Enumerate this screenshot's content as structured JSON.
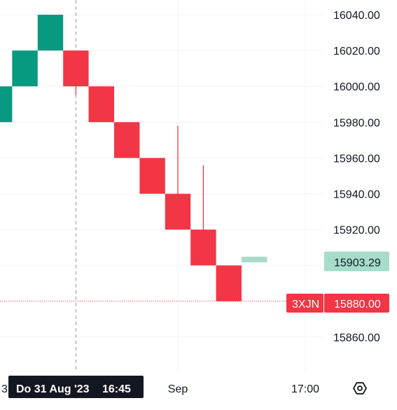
{
  "chart_data": {
    "type": "renko",
    "y_axis": {
      "ticks": [
        "16040.00",
        "16020.00",
        "16000.00",
        "15980.00",
        "15960.00",
        "15940.00",
        "15920.00",
        "15860.00"
      ],
      "range": [
        15848,
        16048
      ],
      "side": "right"
    },
    "x_axis": {
      "ticks": [
        {
          "label": "Sep",
          "index": 7
        },
        {
          "label": "17:00",
          "index": 12
        }
      ],
      "crosshair_label": {
        "date": "Do 31 Aug '23",
        "time": "16:45",
        "index": 3
      },
      "left_cut_label": "3"
    },
    "box_size": 20,
    "bricks": [
      {
        "dir": "up",
        "open": 15980,
        "close": 16000
      },
      {
        "dir": "up",
        "open": 16000,
        "close": 16020
      },
      {
        "dir": "up",
        "open": 16020,
        "close": 16040
      },
      {
        "dir": "down",
        "open": 16020,
        "close": 16000,
        "wick": [
          15995,
          16020
        ]
      },
      {
        "dir": "down",
        "open": 16000,
        "close": 15980
      },
      {
        "dir": "down",
        "open": 15980,
        "close": 15960
      },
      {
        "dir": "down",
        "open": 15960,
        "close": 15940
      },
      {
        "dir": "down",
        "open": 15940,
        "close": 15920,
        "wick": [
          15920,
          15978
        ]
      },
      {
        "dir": "down",
        "open": 15920,
        "close": 15900,
        "wick": [
          15900,
          15956
        ]
      },
      {
        "dir": "down",
        "open": 15900,
        "close": 15880
      }
    ],
    "projected_brick": {
      "dir": "up",
      "value": 15903.29,
      "index": 10
    },
    "last_price": {
      "value": 15880.0,
      "label": "15880.00",
      "symbol": "3XJN"
    },
    "projected_label": "15903.29",
    "colors": {
      "up": "#089981",
      "down": "#F23645",
      "projected": "#A8DCCA",
      "grid": "#F0F3FA",
      "text": "#131722",
      "crosshair": "#9598A1"
    },
    "grid": true
  },
  "icons": {
    "settings": "gear-icon"
  }
}
